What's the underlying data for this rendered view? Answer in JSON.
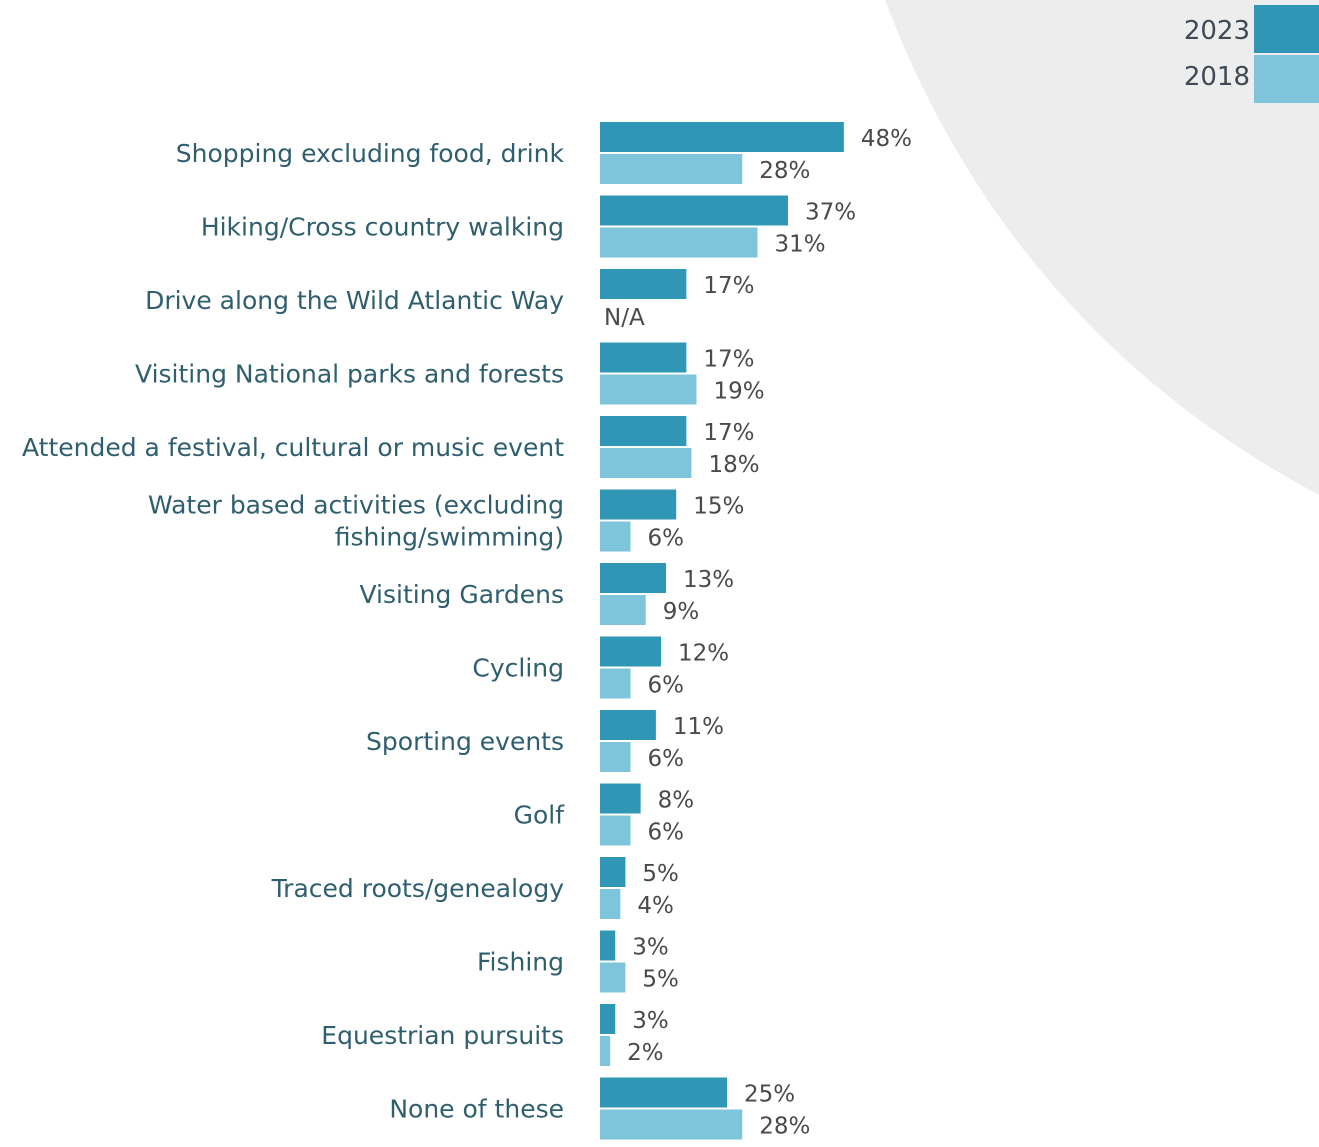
{
  "chart_data": {
    "type": "bar",
    "orientation": "horizontal",
    "categories": [
      [
        "Shopping excluding food, drink"
      ],
      [
        "Hiking/Cross country walking"
      ],
      [
        "Drive along the Wild Atlantic Way"
      ],
      [
        "Visiting National parks and forests"
      ],
      [
        "Attended a festival, cultural or music event"
      ],
      [
        "Water based activities (excluding",
        "fishing/swimming)"
      ],
      [
        "Visiting Gardens"
      ],
      [
        "Cycling"
      ],
      [
        "Sporting events"
      ],
      [
        "Golf"
      ],
      [
        "Traced roots/genealogy"
      ],
      [
        "Fishing"
      ],
      [
        "Equestrian pursuits"
      ],
      [
        "None of these"
      ]
    ],
    "series": [
      {
        "name": "2023",
        "color": "#3096b5",
        "values": [
          48,
          37,
          17,
          17,
          17,
          15,
          13,
          12,
          11,
          8,
          5,
          3,
          3,
          25
        ],
        "labels": [
          "48%",
          "37%",
          "17%",
          "17%",
          "17%",
          "15%",
          "13%",
          "12%",
          "11%",
          "8%",
          "5%",
          "3%",
          "3%",
          "25%"
        ]
      },
      {
        "name": "2018",
        "color": "#7ec5dc",
        "values": [
          28,
          31,
          null,
          19,
          18,
          6,
          9,
          6,
          6,
          6,
          4,
          5,
          2,
          28
        ],
        "labels": [
          "28%",
          "31%",
          "N/A",
          "19%",
          "18%",
          "6%",
          "9%",
          "6%",
          "6%",
          "6%",
          "4%",
          "5%",
          "2%",
          "28%"
        ]
      }
    ],
    "xlim": [
      0,
      100
    ],
    "grid": false,
    "legend_position": "top-right",
    "colors": {
      "category_text": "#2f5f6e",
      "value_text": "#4a4a4a",
      "background_shape": "#ededed"
    }
  }
}
